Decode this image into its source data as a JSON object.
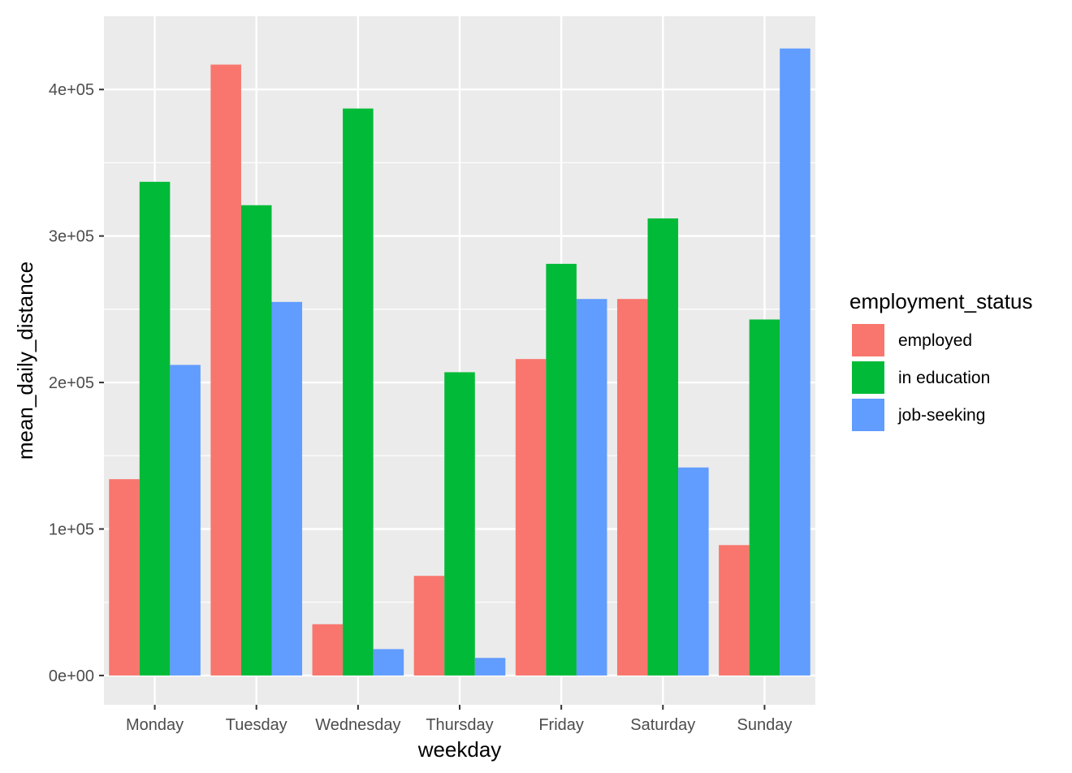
{
  "chart_data": {
    "type": "bar",
    "title": "",
    "xlabel": "weekday",
    "ylabel": "mean_daily_distance",
    "categories": [
      "Monday",
      "Tuesday",
      "Wednesday",
      "Thursday",
      "Friday",
      "Saturday",
      "Sunday"
    ],
    "series": [
      {
        "name": "employed",
        "color": "#F8766D",
        "values": [
          134000,
          417000,
          35000,
          68000,
          216000,
          257000,
          89000
        ]
      },
      {
        "name": "in education",
        "color": "#00BA38",
        "values": [
          337000,
          321000,
          387000,
          207000,
          281000,
          312000,
          243000
        ]
      },
      {
        "name": "job-seeking",
        "color": "#619CFF",
        "values": [
          212000,
          255000,
          18000,
          12000,
          257000,
          142000,
          428000
        ]
      }
    ],
    "ylim": [
      -20000,
      450000
    ],
    "yticks": [
      0,
      100000,
      200000,
      300000,
      400000
    ],
    "ytick_labels": [
      "0e+00",
      "1e+05",
      "2e+05",
      "3e+05",
      "4e+05"
    ],
    "grid": true,
    "legend": {
      "title": "employment_status",
      "position": "right"
    },
    "panel_background": "#EBEBEB",
    "grid_color": "#FFFFFF"
  }
}
